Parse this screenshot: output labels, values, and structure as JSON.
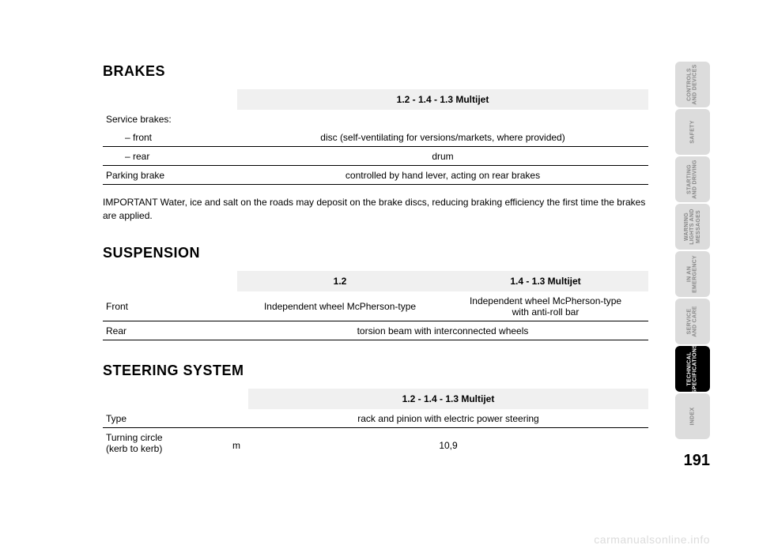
{
  "page_number": "191",
  "watermark": "carmanualsonline.info",
  "brakes": {
    "title": "BRAKES",
    "header_variant": "1.2 - 1.4 - 1.3 Multijet",
    "rows": {
      "service_label": "Service brakes:",
      "front_label": "– front",
      "front_value": "disc (self-ventilating for versions/markets, where provided)",
      "rear_label": "– rear",
      "rear_value": "drum",
      "parking_label": "Parking brake",
      "parking_value": "controlled by hand lever, acting on rear brakes"
    },
    "note": "IMPORTANT Water, ice and salt on the roads may deposit on the brake discs, reducing braking efficiency the first time the brakes are applied."
  },
  "suspension": {
    "title": "SUSPENSION",
    "header_a": "1.2",
    "header_b": "1.4 - 1.3 Multijet",
    "front_label": "Front",
    "front_a": "Independent wheel McPherson-type",
    "front_b_line1": "Independent wheel McPherson-type",
    "front_b_line2": "with anti-roll bar",
    "rear_label": "Rear",
    "rear_value": "torsion beam with interconnected wheels"
  },
  "steering": {
    "title": "STEERING SYSTEM",
    "header_variant": "1.2 - 1.4 - 1.3 Multijet",
    "type_label": "Type",
    "type_value": "rack and pinion with electric power steering",
    "turning_label_line1": "Turning circle",
    "turning_label_line2": "(kerb to kerb)",
    "turning_unit": "m",
    "turning_value": "10,9"
  },
  "tabs": {
    "t1": "CONTROLS\nAND DEVICES",
    "t2": "SAFETY",
    "t3": "STARTING\nAND DRIVING",
    "t4": "WARNING\nLIGHTS AND\nMESSAGES",
    "t5": "IN AN\nEMERGENCY",
    "t6": "SERVICE\nAND CARE",
    "t7": "TECHNICAL\nSPECIFICATIONS",
    "t8": "INDEX"
  }
}
